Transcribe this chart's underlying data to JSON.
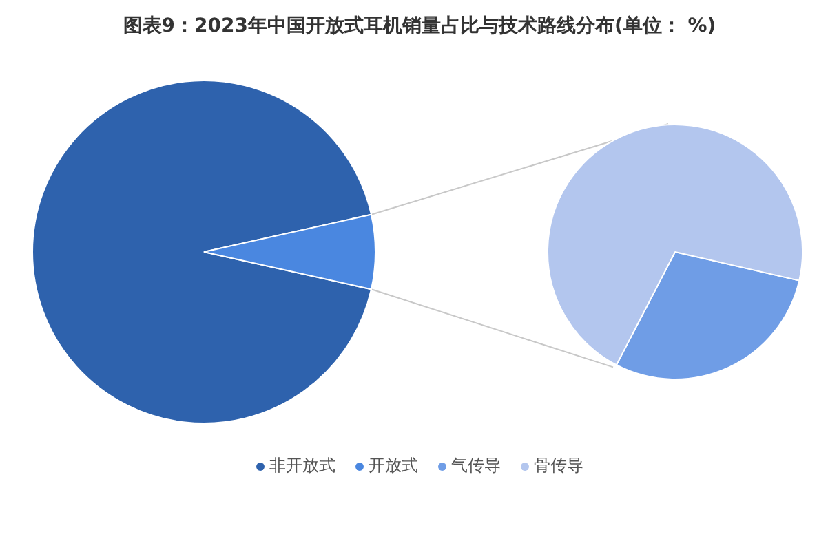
{
  "chart_data": [
    {
      "type": "pie",
      "title": "图表9：2023年中国开放式耳机销量占比与技术路线分布(单位： %)",
      "categories": [
        "非开放式",
        "开放式"
      ],
      "values": [
        93,
        7
      ],
      "colors": [
        "#2e62ad",
        "#4a87e0"
      ],
      "legend": "bottom"
    },
    {
      "type": "pie",
      "categories": [
        "气传导",
        "骨传导"
      ],
      "values": [
        29,
        71
      ],
      "colors": [
        "#6f9de6",
        "#b3c6ee"
      ],
      "legend": "bottom"
    }
  ]
}
